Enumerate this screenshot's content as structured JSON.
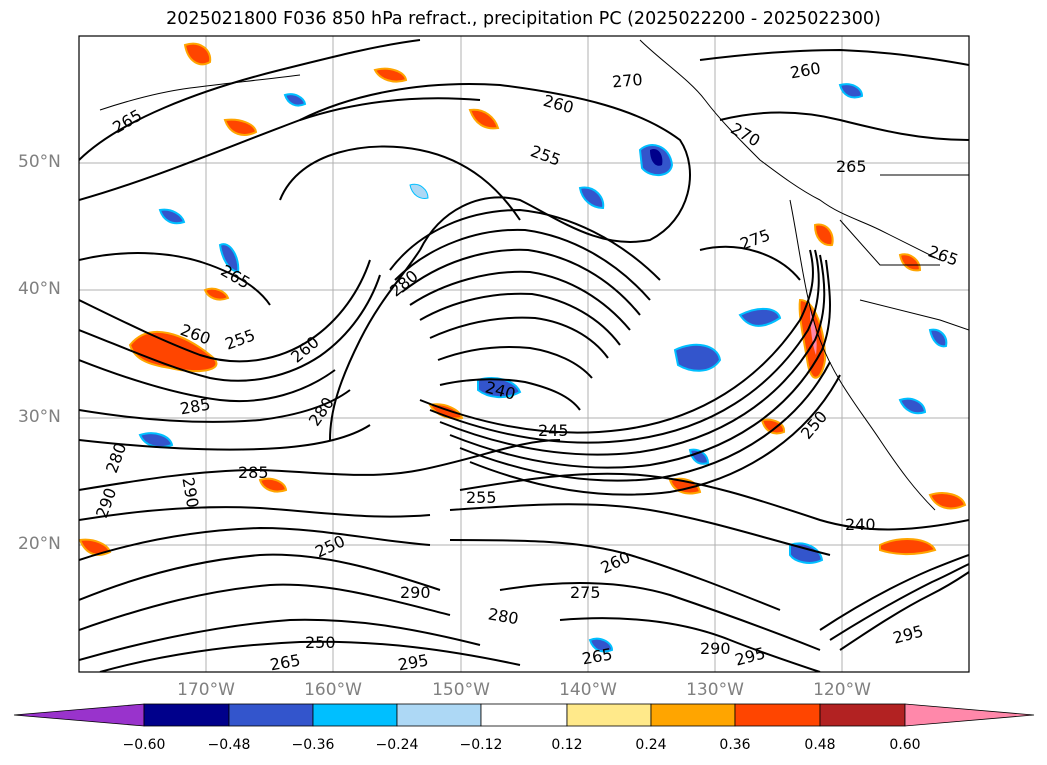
{
  "title": "2025021800 F036 850 hPa refract., precipitation PC (2025022200 - 2025022300)",
  "lat_labels": [
    "50°N",
    "40°N",
    "30°N",
    "20°N"
  ],
  "lon_labels": [
    "170°W",
    "160°W",
    "150°W",
    "140°W",
    "130°W",
    "120°W"
  ],
  "contour_labels": [
    "265",
    "270",
    "260",
    "260",
    "255",
    "265",
    "270",
    "275",
    "265",
    "265",
    "280",
    "260",
    "255",
    "260",
    "280",
    "240",
    "245",
    "250",
    "285",
    "280",
    "290",
    "285",
    "290",
    "255",
    "260",
    "275",
    "290",
    "280",
    "250",
    "295",
    "290",
    "295",
    "265",
    "250",
    "240",
    "265",
    "295"
  ],
  "colorbar": {
    "colors": [
      "#9933cc",
      "#00008b",
      "#3355cc",
      "#00bfff",
      "#add8f5",
      "#ffffff",
      "#ffe98a",
      "#ffa500",
      "#ff4500",
      "#b22222",
      "#ff88aa"
    ],
    "ticks": [
      "−0.60",
      "−0.48",
      "−0.36",
      "−0.24",
      "−0.12",
      "0.12",
      "0.24",
      "0.36",
      "0.48",
      "0.60"
    ]
  }
}
